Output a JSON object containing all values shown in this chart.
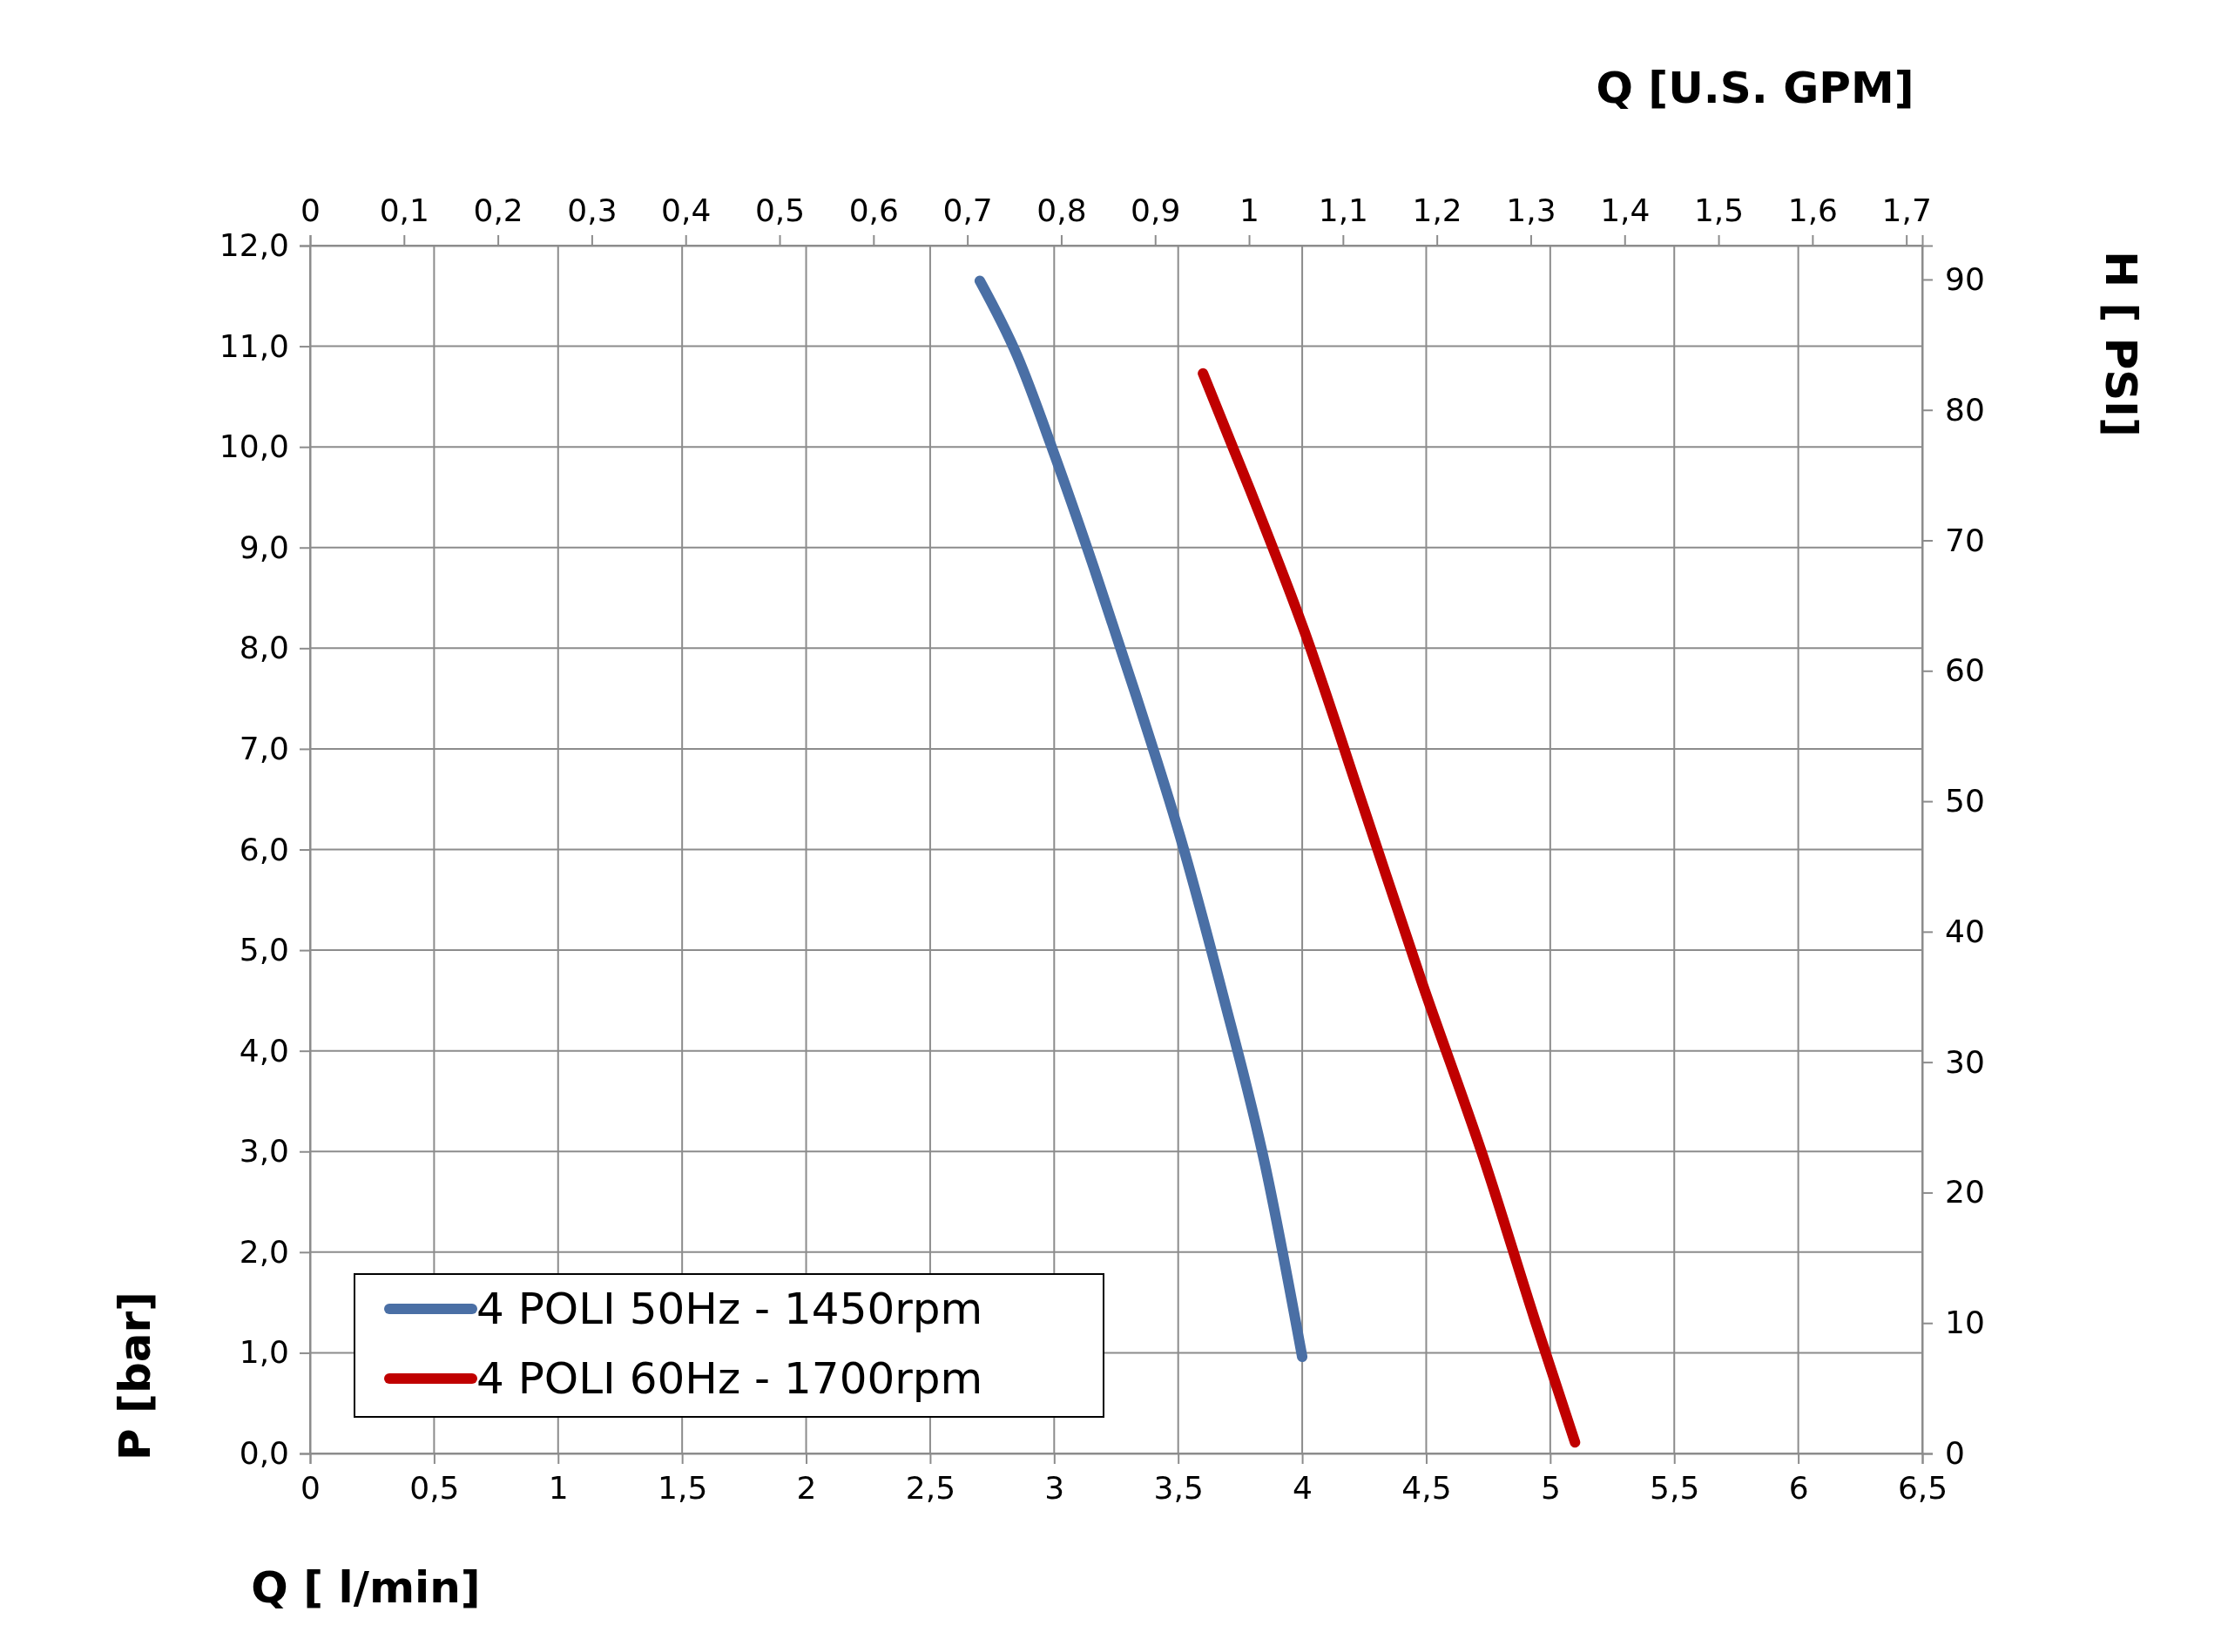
{
  "chart_data": {
    "type": "line",
    "xlabel": "Q [ l/min]",
    "ylabel": "P [bar]",
    "y2label": "H [ PSI]",
    "x2label": "Q  [U.S. GPM]",
    "xlim": [
      0,
      6.5
    ],
    "xticks": [
      0,
      {
        "value": 0.5,
        "label": "0,5"
      },
      1,
      {
        "value": 1.5,
        "label": "1,5"
      },
      2,
      {
        "value": 2.5,
        "label": "2,5"
      },
      3,
      {
        "value": 3.5,
        "label": "3,5"
      },
      4,
      {
        "value": 4.5,
        "label": "4,5"
      },
      5,
      {
        "value": 5.5,
        "label": "5,5"
      },
      6,
      {
        "value": 6.5,
        "label": "6,5"
      }
    ],
    "ylim": [
      0,
      12
    ],
    "yticks": [
      {
        "value": 0,
        "label": "0,0"
      },
      {
        "value": 1,
        "label": "1,0"
      },
      {
        "value": 2,
        "label": "2,0"
      },
      {
        "value": 3,
        "label": "3,0"
      },
      {
        "value": 4,
        "label": "4,0"
      },
      {
        "value": 5,
        "label": "5,0"
      },
      {
        "value": 6,
        "label": "6,0"
      },
      {
        "value": 7,
        "label": "7,0"
      },
      {
        "value": 8,
        "label": "8,0"
      },
      {
        "value": 9,
        "label": "9,0"
      },
      {
        "value": 10,
        "label": "10,0"
      },
      {
        "value": 11,
        "label": "11,0"
      },
      {
        "value": 12,
        "label": "12,0"
      }
    ],
    "x2lim": [
      0,
      1.717
    ],
    "x2ticks": [
      0,
      {
        "value": 0.1,
        "label": "0,1"
      },
      {
        "value": 0.2,
        "label": "0,2"
      },
      {
        "value": 0.3,
        "label": "0,3"
      },
      {
        "value": 0.4,
        "label": "0,4"
      },
      {
        "value": 0.5,
        "label": "0,5"
      },
      {
        "value": 0.6,
        "label": "0,6"
      },
      {
        "value": 0.7,
        "label": "0,7"
      },
      {
        "value": 0.8,
        "label": "0,8"
      },
      {
        "value": 0.9,
        "label": "0,9"
      },
      1,
      {
        "value": 1.1,
        "label": "1,1"
      },
      {
        "value": 1.2,
        "label": "1,2"
      },
      {
        "value": 1.3,
        "label": "1,3"
      },
      {
        "value": 1.4,
        "label": "1,4"
      },
      {
        "value": 1.5,
        "label": "1,5"
      },
      {
        "value": 1.6,
        "label": "1,6"
      },
      {
        "value": 1.7,
        "label": "1,7"
      }
    ],
    "y2lim": [
      0,
      92.6
    ],
    "y2ticks": [
      0,
      10,
      20,
      30,
      40,
      50,
      60,
      70,
      80,
      90
    ],
    "grid": true,
    "legend": "bottom left",
    "marker": "none",
    "line_style": "solid",
    "series": [
      {
        "name": "4 POLI 50Hz - 1450rpm",
        "color": "#4a6fa5",
        "x": [
          2.7,
          2.85,
          3.0,
          3.16,
          3.33,
          3.51,
          3.68,
          3.85,
          4.0
        ],
        "values": [
          11.65,
          10.91,
          9.93,
          8.8,
          7.53,
          6.11,
          4.56,
          2.87,
          0.96
        ]
      },
      {
        "name": "4 POLI 60Hz - 1700rpm",
        "color": "#c00000",
        "x": [
          3.6,
          3.79,
          4.01,
          4.25,
          4.48,
          4.74,
          4.94,
          5.1
        ],
        "values": [
          10.73,
          9.57,
          8.16,
          6.4,
          4.7,
          2.87,
          1.31,
          0.11
        ]
      }
    ]
  }
}
